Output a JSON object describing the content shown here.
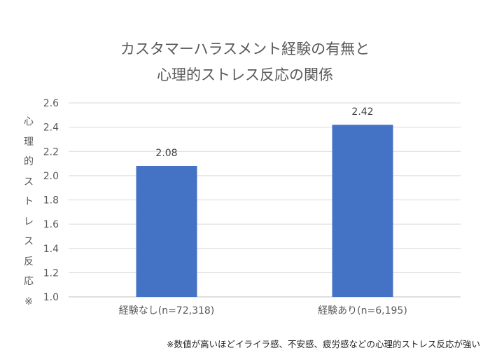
{
  "chart_data": {
    "type": "bar",
    "title_lines": [
      "カスタマーハラスメント経験の有無と",
      "心理的ストレス反応の関係"
    ],
    "ylabel": "心理的ストレス反応※",
    "xlabel": "",
    "categories": [
      "経験なし(n=72,318)",
      "経験あり(n=6,195)"
    ],
    "values": [
      2.08,
      2.42
    ],
    "data_labels": [
      "2.08",
      "2.42"
    ],
    "ylim": [
      1.0,
      2.6
    ],
    "yticks": [
      "1.0",
      "1.2",
      "1.4",
      "1.6",
      "1.8",
      "2.0",
      "2.2",
      "2.4",
      "2.6"
    ],
    "grid": true,
    "bar_color": "#4472C4",
    "footnote": "※数値が高いほどイライラ感、不安感、疲労感などの心理的ストレス反応が強い"
  }
}
